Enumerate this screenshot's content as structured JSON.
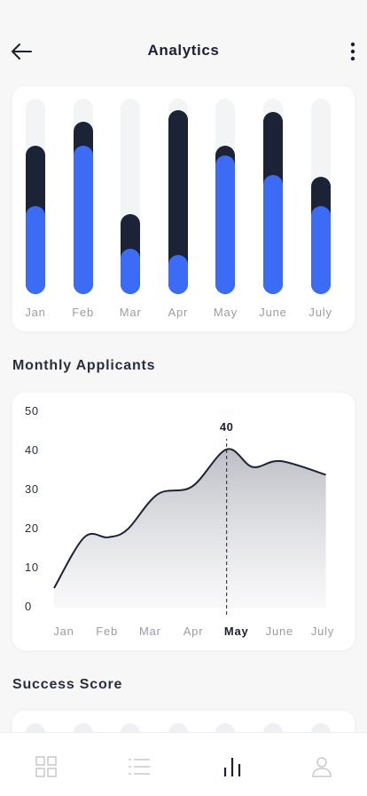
{
  "header": {
    "title": "Analytics"
  },
  "sections": {
    "applicants_title": "Monthly Applicants",
    "score_title": "Success Score"
  },
  "colors": {
    "dark": "#1d2336",
    "accent": "#3c6cf6",
    "track": "#f3f4f6",
    "muted": "#9a9ca6"
  },
  "chart_data": [
    {
      "type": "bar",
      "categories": [
        "Jan",
        "Feb",
        "Mar",
        "Apr",
        "May",
        "June",
        "July"
      ],
      "series": [
        {
          "values": [
            0.76,
            0.88,
            0.41,
            0.94,
            0.76,
            0.93,
            0.6
          ]
        },
        {
          "values": [
            0.45,
            0.76,
            0.23,
            0.2,
            0.71,
            0.61,
            0.45
          ]
        }
      ],
      "ylim": [
        0,
        1
      ],
      "grid": false
    },
    {
      "type": "area",
      "x": [
        "Jan",
        "Feb",
        "Mar",
        "Apr",
        "May",
        "June",
        "July"
      ],
      "y_ticks": [
        "0",
        "10",
        "20",
        "30",
        "40",
        "50"
      ],
      "ylim": [
        0,
        50
      ],
      "points": [
        {
          "x": 0,
          "y": 5
        },
        {
          "x": 0.7,
          "y": 18
        },
        {
          "x": 1.25,
          "y": 18
        },
        {
          "x": 1.7,
          "y": 20
        },
        {
          "x": 2.4,
          "y": 29
        },
        {
          "x": 3.2,
          "y": 31
        },
        {
          "x": 4,
          "y": 40.5
        },
        {
          "x": 4.6,
          "y": 36
        },
        {
          "x": 5.25,
          "y": 37.5
        },
        {
          "x": 6.3,
          "y": 34
        }
      ],
      "highlight": {
        "x_label": "May",
        "label": "40"
      },
      "grid": false
    }
  ],
  "tabbar": {
    "items": [
      {
        "name": "dashboard",
        "active": false
      },
      {
        "name": "list",
        "active": false
      },
      {
        "name": "analytics",
        "active": true
      },
      {
        "name": "profile",
        "active": false
      }
    ]
  }
}
